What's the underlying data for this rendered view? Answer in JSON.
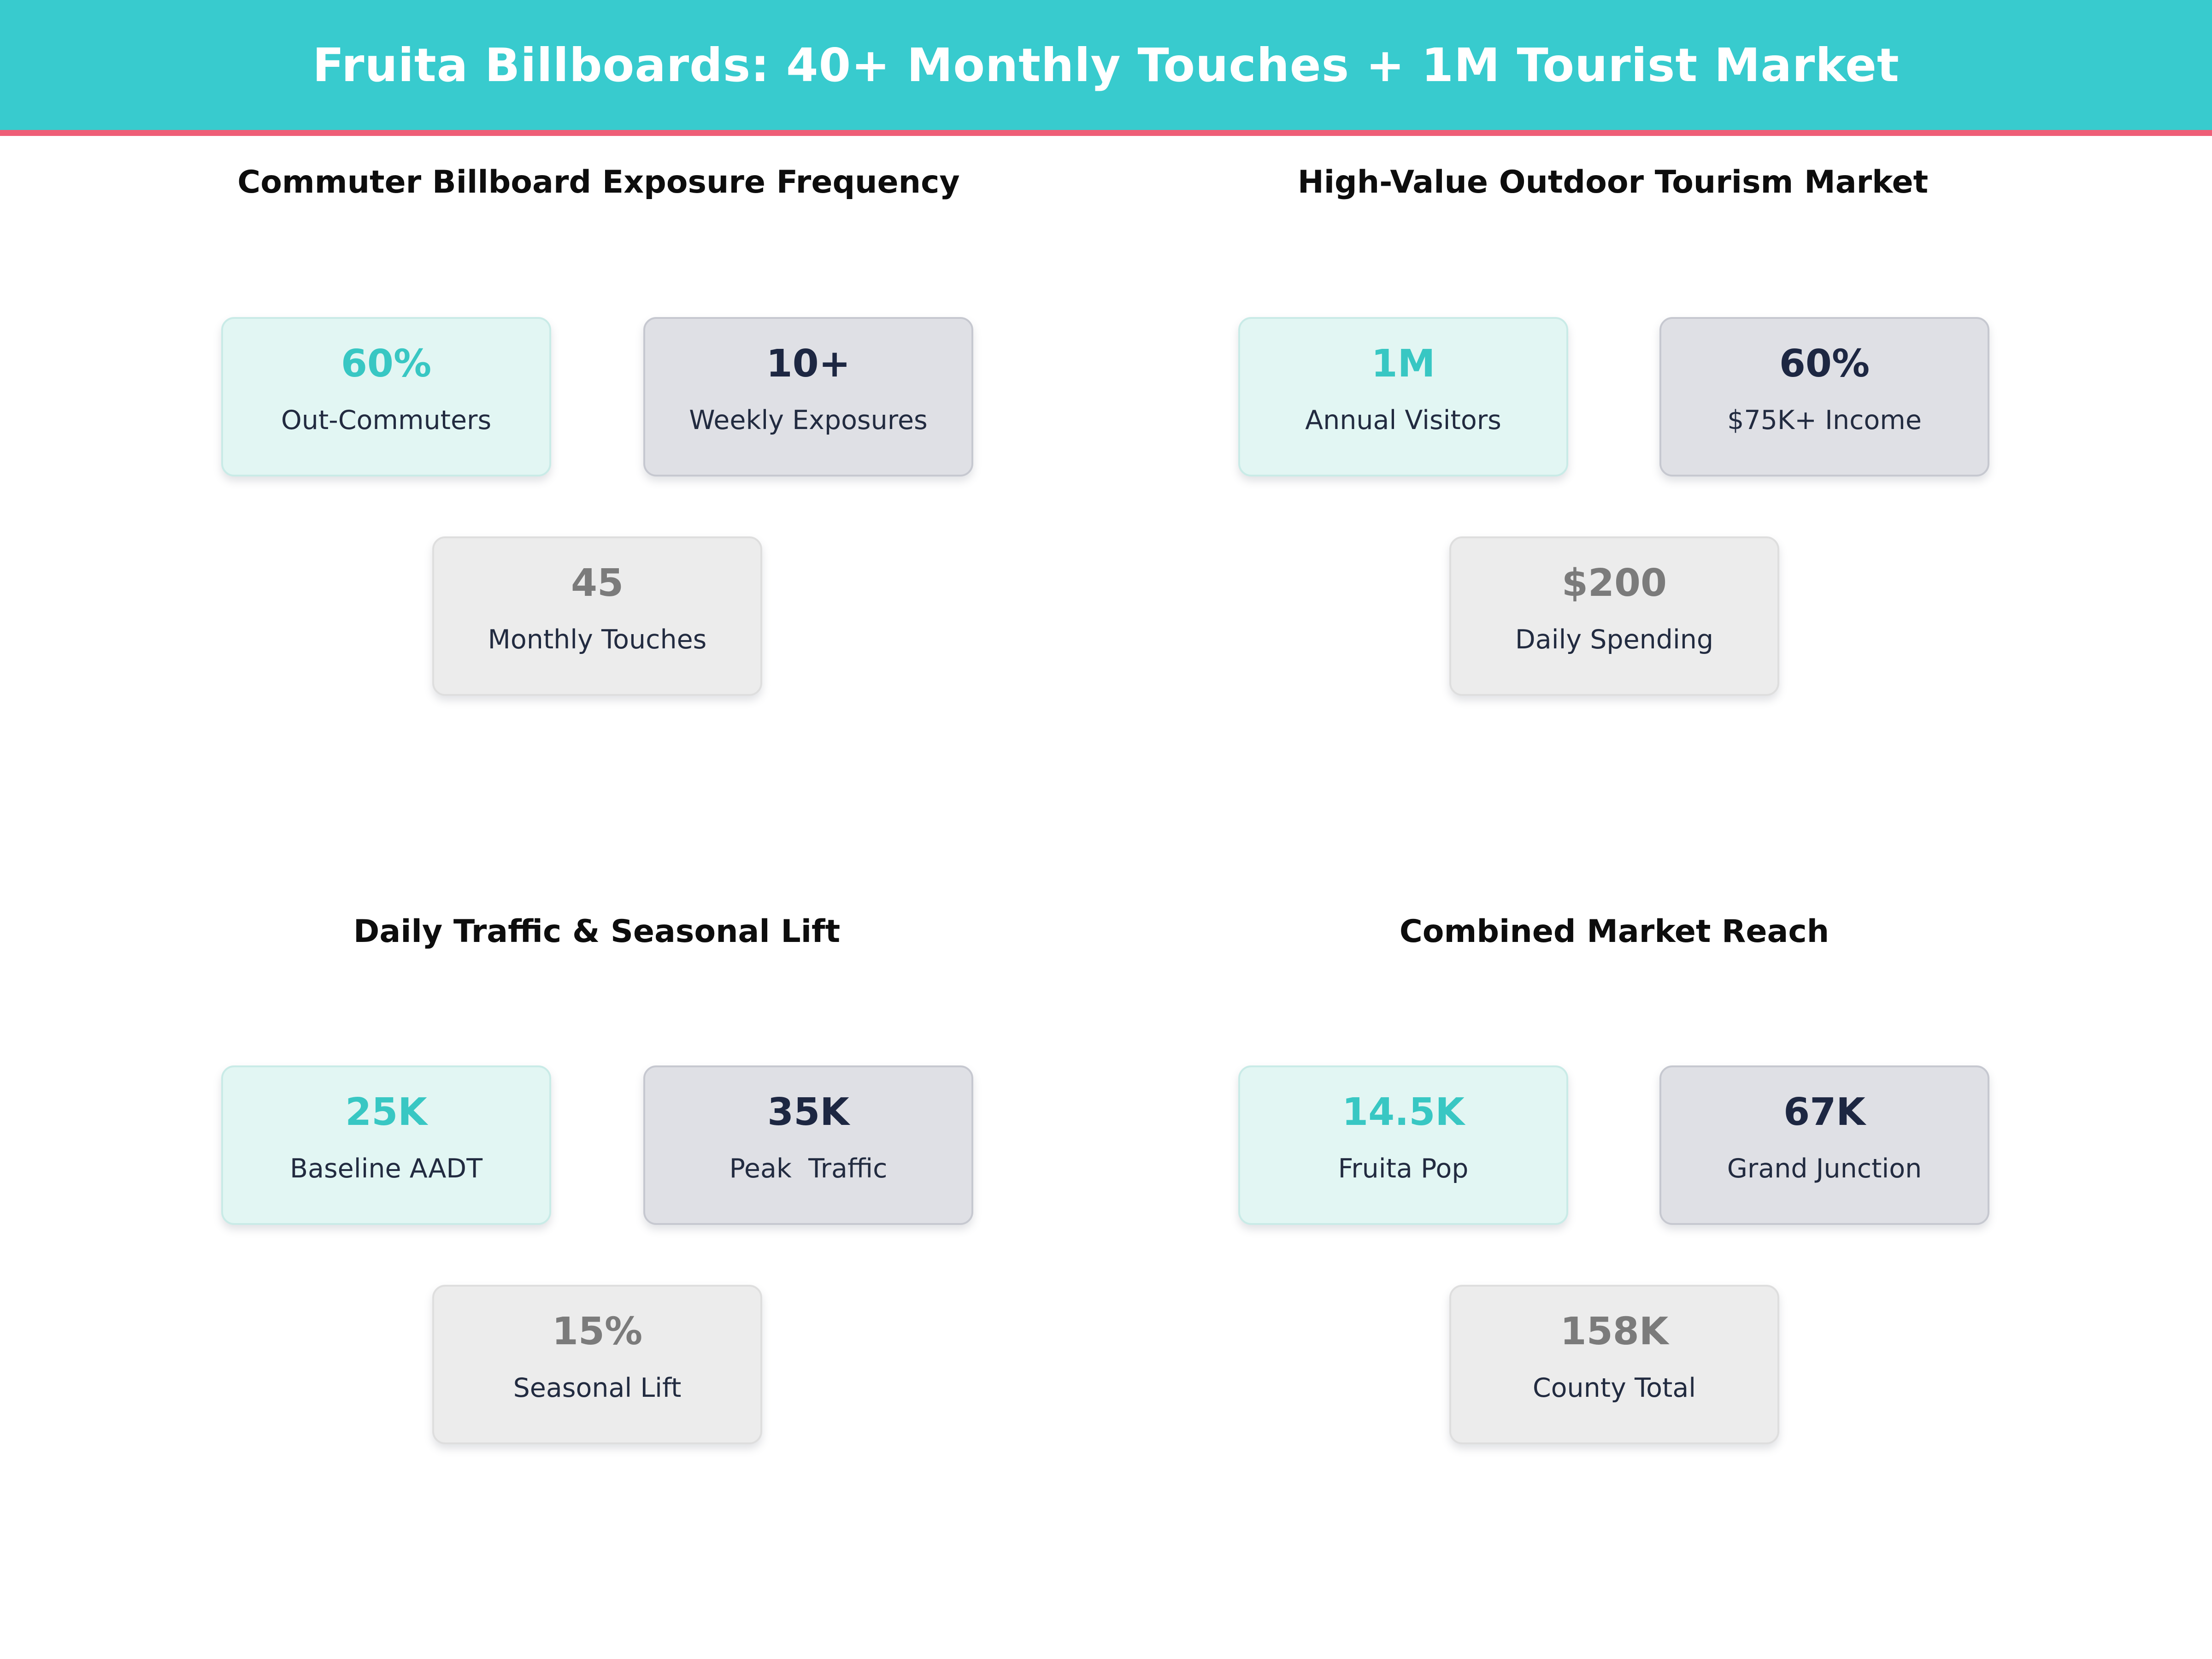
{
  "header": {
    "title": "Fruita Billboards: 40+ Monthly Touches + 1M Tourist Market"
  },
  "theme": {
    "header_bg": "#38cbce",
    "divider_pink": "#ee5e77",
    "accent_teal": "#38c7c3",
    "navy_text": "#222b40",
    "dark_value": "#1d2742",
    "muted_value": "#7b7b7b",
    "accent_card_bg": "#e2f6f3",
    "dark_card_bg": "#dfe0e5",
    "muted_card_bg": "#ececec"
  },
  "quadrants": [
    {
      "title": "Commuter Billboard Exposure Frequency",
      "cards": [
        {
          "value": "60%",
          "label": "Out-Commuters",
          "variant": "accent"
        },
        {
          "value": "10+",
          "label": "Weekly Exposures",
          "variant": "dark"
        },
        {
          "value": "45",
          "label": "Monthly Touches",
          "variant": "muted"
        }
      ]
    },
    {
      "title": "High-Value Outdoor Tourism Market",
      "cards": [
        {
          "value": "1M",
          "label": "Annual Visitors",
          "variant": "accent"
        },
        {
          "value": "60%",
          "label": "$75K+ Income",
          "variant": "dark"
        },
        {
          "value": "$200",
          "label": "Daily Spending",
          "variant": "muted"
        }
      ]
    },
    {
      "title": "Daily Traffic & Seasonal Lift",
      "cards": [
        {
          "value": "25K",
          "label": "Baseline AADT",
          "variant": "accent"
        },
        {
          "value": "35K",
          "label": "Peak  Traffic",
          "variant": "dark"
        },
        {
          "value": "15%",
          "label": "Seasonal Lift",
          "variant": "muted"
        }
      ]
    },
    {
      "title": "Combined Market Reach",
      "cards": [
        {
          "value": "14.5K",
          "label": "Fruita Pop",
          "variant": "accent"
        },
        {
          "value": "67K",
          "label": "Grand Junction",
          "variant": "dark"
        },
        {
          "value": "158K",
          "label": "County Total",
          "variant": "muted"
        }
      ]
    }
  ],
  "chart_data": [
    {
      "type": "table",
      "title": "Commuter Billboard Exposure Frequency",
      "metrics": [
        {
          "label": "Out-Commuters",
          "value": "60%"
        },
        {
          "label": "Weekly Exposures",
          "value": "10+"
        },
        {
          "label": "Monthly Touches",
          "value": "45"
        }
      ]
    },
    {
      "type": "table",
      "title": "High-Value Outdoor Tourism Market",
      "metrics": [
        {
          "label": "Annual Visitors",
          "value": "1M"
        },
        {
          "label": "$75K+ Income",
          "value": "60%"
        },
        {
          "label": "Daily Spending",
          "value": "$200"
        }
      ]
    },
    {
      "type": "table",
      "title": "Daily Traffic & Seasonal Lift",
      "metrics": [
        {
          "label": "Baseline AADT",
          "value": "25K"
        },
        {
          "label": "Peak Traffic",
          "value": "35K"
        },
        {
          "label": "Seasonal Lift",
          "value": "15%"
        }
      ]
    },
    {
      "type": "table",
      "title": "Combined Market Reach",
      "metrics": [
        {
          "label": "Fruita Pop",
          "value": "14.5K"
        },
        {
          "label": "Grand Junction",
          "value": "67K"
        },
        {
          "label": "County Total",
          "value": "158K"
        }
      ]
    }
  ]
}
